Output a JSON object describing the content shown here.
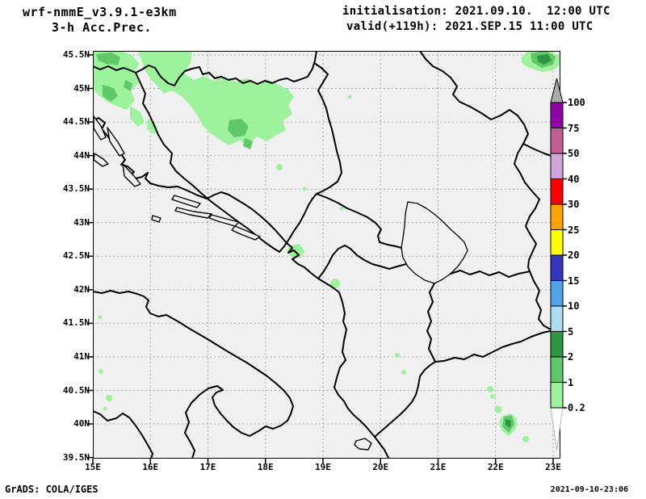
{
  "header": {
    "model": "wrf-nmmE_v3.9.1-e3km",
    "product": "3-h Acc.Prec.",
    "init": "initialisation: 2021.09.10.  12:00 UTC",
    "valid": "valid(+119h): 2021.SEP.15 11:00 UTC"
  },
  "map": {
    "lat_labels": [
      "45.5N",
      "45N",
      "44.5N",
      "44N",
      "43.5N",
      "43N",
      "42.5N",
      "42N",
      "41.5N",
      "41N",
      "40.5N",
      "40N",
      "39.5N"
    ],
    "lon_labels": [
      "15E",
      "16E",
      "17E",
      "18E",
      "19E",
      "20E",
      "21E",
      "22E",
      "23E"
    ]
  },
  "legend": {
    "levels": [
      "0.2",
      "1",
      "2",
      "5",
      "10",
      "15",
      "20",
      "25",
      "30",
      "40",
      "50",
      "75",
      "100"
    ],
    "band_colors": [
      "#9cf39c",
      "#5fc869",
      "#2d9641",
      "#aadcf2",
      "#4fa3e8",
      "#3434bd",
      "#ffff00",
      "#ffa300",
      "#ff0000",
      "#d2a4dc",
      "#c25e93",
      "#9102a8"
    ],
    "above_max_color": "#ababab",
    "below_min_color": "#ffffff"
  },
  "footer": {
    "left": "GrADS: COLA/IGES",
    "right": "2021-09-10-23:06"
  },
  "colors": {
    "precip_light": "#9cf39c",
    "precip_medium": "#5fc869",
    "precip_dark": "#2d9641",
    "map_background": "#f0f0f0",
    "gridline": "#aaaaaa",
    "border": "#000000"
  }
}
